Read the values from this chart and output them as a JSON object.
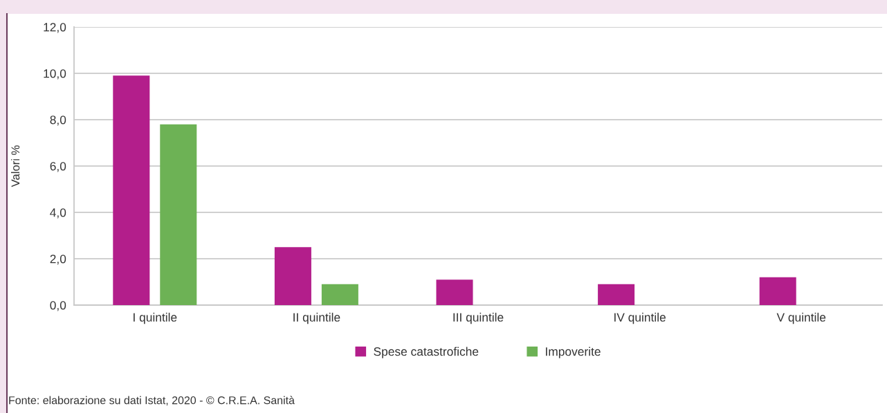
{
  "chart_data": {
    "type": "bar",
    "ylabel": "Valori %",
    "categories": [
      "I quintile",
      "II quintile",
      "III quintile",
      "IV quintile",
      "V quintile"
    ],
    "series": [
      {
        "name": "Spese catastrofiche",
        "color": "#b31e8b",
        "values": [
          9.9,
          2.5,
          1.1,
          0.9,
          1.2
        ]
      },
      {
        "name": "Impoverite",
        "color": "#6db255",
        "values": [
          7.8,
          0.9,
          null,
          null,
          null
        ]
      }
    ],
    "ylim": [
      0,
      12
    ],
    "yticks": [
      {
        "value": 0,
        "label": "0,0"
      },
      {
        "value": 2,
        "label": "2,0"
      },
      {
        "value": 4,
        "label": "4,0"
      },
      {
        "value": 6,
        "label": "6,0"
      },
      {
        "value": 8,
        "label": "8,0"
      },
      {
        "value": 10,
        "label": "10,0"
      },
      {
        "value": 12,
        "label": "12,0"
      }
    ],
    "grid": "y",
    "legend": "bottom",
    "annotations": [
      "Fonte: elaborazione su dati Istat, 2020 - © C.R.E.A. Sanità"
    ]
  }
}
